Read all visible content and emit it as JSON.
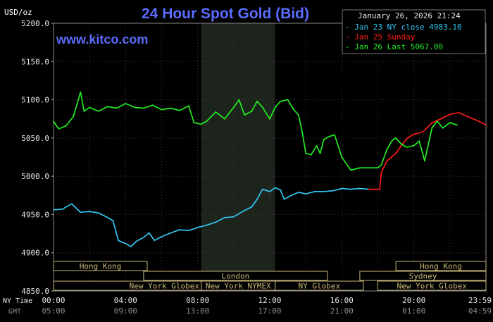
{
  "chart_data": {
    "type": "line",
    "title": "24 Hour Spot Gold (Bid)",
    "ylabel": "USD/oz",
    "watermark": "www.kitco.com",
    "timestamp": "January 26, 2026 21:24",
    "ylim": [
      4850,
      5200
    ],
    "y_ticks": [
      "5200.0",
      "5150.0",
      "5100.0",
      "5050.0",
      "5000.0",
      "4950.0",
      "4900.0",
      "4850.0"
    ],
    "x_row_labels": {
      "ny": "NY Time",
      "gmt": "GMT"
    },
    "x_ticks_ny": [
      "00:00",
      "04:00",
      "08:00",
      "12:00",
      "16:00",
      "20:00",
      "23:59"
    ],
    "x_ticks_gmt": [
      "05:00",
      "09:00",
      "13:00",
      "17:00",
      "21:00",
      "01:00",
      "04:59"
    ],
    "legend": [
      {
        "label": "Jan 23 NY close 4983.10",
        "color": "#33c5f3"
      },
      {
        "label": "Jan 25 Sunday",
        "color": "#ff1a1a"
      },
      {
        "label": "Jan 26 Last 5067.00",
        "color": "#22ee22"
      }
    ],
    "shaded_hours": [
      8.2,
      12.3
    ],
    "series": [
      {
        "name": "Jan 23",
        "color": "#33c5f3",
        "x": [
          0,
          0.5,
          1,
          1.5,
          2,
          2.5,
          3,
          3.3,
          3.6,
          4,
          4.3,
          4.6,
          5,
          5.3,
          5.6,
          6,
          6.4,
          7,
          7.5,
          8,
          8.5,
          9,
          9.5,
          10,
          10.5,
          11,
          11.3,
          11.6,
          12,
          12.3,
          12.6,
          12.8,
          13.2,
          13.6,
          14,
          14.5,
          15,
          15.5,
          16,
          16.5,
          17,
          17.5
        ],
        "values": [
          4956,
          4957,
          4964,
          4953,
          4954,
          4952,
          4946,
          4942,
          4916,
          4912,
          4908,
          4915,
          4920,
          4926,
          4916,
          4921,
          4925,
          4930,
          4929,
          4933,
          4936,
          4940,
          4946,
          4947,
          4954,
          4960,
          4970,
          4983,
          4980,
          4985,
          4982,
          4970,
          4975,
          4979,
          4977,
          4980,
          4980,
          4981,
          4984,
          4983,
          4984,
          4983
        ]
      },
      {
        "name": "Jan 25",
        "color": "#ff1a1a",
        "x": [
          17.5,
          18.1,
          18.2,
          18.5,
          19,
          19.3,
          19.6,
          20,
          20.5,
          21,
          21.5,
          22,
          22.5,
          23,
          23.5,
          24
        ],
        "values": [
          4983,
          4983,
          5005,
          5020,
          5030,
          5040,
          5049,
          5055,
          5058,
          5070,
          5075,
          5081,
          5083,
          5078,
          5073,
          5067
        ]
      },
      {
        "name": "Jan 26",
        "color": "#22ee22",
        "x": [
          0,
          0.1,
          0.3,
          0.7,
          1.1,
          1.5,
          1.7,
          2,
          2.5,
          3,
          3.5,
          4,
          4.5,
          5,
          5.5,
          6,
          6.5,
          7,
          7.5,
          7.8,
          8.2,
          8.5,
          9,
          9.5,
          10,
          10.3,
          10.6,
          11,
          11.3,
          11.6,
          12,
          12.3,
          12.6,
          13,
          13.3,
          13.6,
          13.8,
          14,
          14.3,
          14.6,
          14.8,
          15,
          15.3,
          15.6,
          16,
          16.5,
          17,
          17.5,
          18,
          18.2,
          18.5,
          18.8,
          19,
          19.3,
          19.6,
          20,
          20.3,
          20.6,
          21,
          21.3,
          21.6,
          22,
          22.4
        ],
        "values": [
          5072,
          5068,
          5062,
          5066,
          5078,
          5110,
          5085,
          5090,
          5085,
          5091,
          5089,
          5095,
          5090,
          5089,
          5093,
          5087,
          5089,
          5086,
          5092,
          5070,
          5068,
          5072,
          5084,
          5075,
          5090,
          5100,
          5080,
          5085,
          5098,
          5090,
          5075,
          5090,
          5098,
          5100,
          5088,
          5080,
          5058,
          5030,
          5028,
          5040,
          5030,
          5048,
          5052,
          5054,
          5025,
          5008,
          5011,
          5011,
          5011,
          5015,
          5035,
          5047,
          5050,
          5042,
          5038,
          5040,
          5046,
          5020,
          5063,
          5072,
          5063,
          5070,
          5067
        ]
      }
    ]
  },
  "sessions": [
    {
      "label": "Hong Kong",
      "start": 0,
      "end": 5.2,
      "row": 0
    },
    {
      "label": "London",
      "start": 5.0,
      "end": 15.2,
      "row": 1
    },
    {
      "label": "New York Globex",
      "start": 0,
      "end": 12.3,
      "row": 2
    },
    {
      "label": "New York NYMEX",
      "start": 8.2,
      "end": 12.3,
      "row": 2
    },
    {
      "label": "NY Globex",
      "start": 12.3,
      "end": 17.2,
      "row": 2
    },
    {
      "label": "Hong Kong",
      "start": 19.0,
      "end": 24,
      "row": 0
    },
    {
      "label": "Sydney",
      "start": 17.0,
      "end": 24,
      "row": 1
    },
    {
      "label": "New York Globex",
      "start": 18.0,
      "end": 24,
      "row": 2
    }
  ]
}
